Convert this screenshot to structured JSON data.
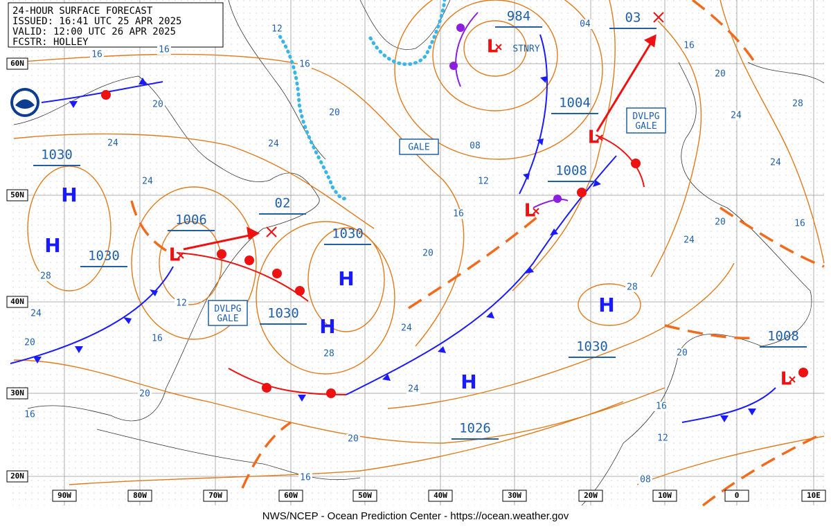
{
  "header": {
    "title": "24-HOUR SURFACE FORECAST",
    "issued": "ISSUED: 16:41 UTC 25 APR 2025",
    "valid": "VALID: 12:00 UTC 26 APR 2025",
    "forecaster": "FCSTR: HOLLEY"
  },
  "footer": "NWS/NCEP - Ocean Prediction Center - https://ocean.weather.gov",
  "lat_labels": [
    "60N",
    "50N",
    "40N",
    "30N",
    "20N"
  ],
  "lon_labels": [
    "90W",
    "80W",
    "70W",
    "60W",
    "50W",
    "40W",
    "30W",
    "20W",
    "10W",
    "0",
    "10E"
  ],
  "highs": [
    "H",
    "H",
    "H",
    "H",
    "H",
    "H"
  ],
  "lows": [
    "L",
    "L",
    "L",
    "L",
    "L"
  ],
  "pressure_labels": [
    "1030",
    "1030",
    "1006",
    "02",
    "1030",
    "1030",
    "984",
    "1004",
    "1008",
    "03",
    "1030",
    "1026",
    "1008"
  ],
  "stationary_label": "STNRY",
  "warnings": [
    "GALE",
    "DVLPG GALE",
    "DVLPG GALE"
  ],
  "isobar_labels": [
    "12",
    "16",
    "16",
    "16",
    "20",
    "24",
    "24",
    "20",
    "24",
    "08",
    "12",
    "16",
    "20",
    "04",
    "16",
    "20",
    "24",
    "28",
    "24",
    "20",
    "16",
    "24",
    "28",
    "28",
    "24",
    "20",
    "12",
    "16",
    "28",
    "24",
    "24",
    "20",
    "16",
    "20",
    "16",
    "20",
    "16",
    "12",
    "08"
  ]
}
